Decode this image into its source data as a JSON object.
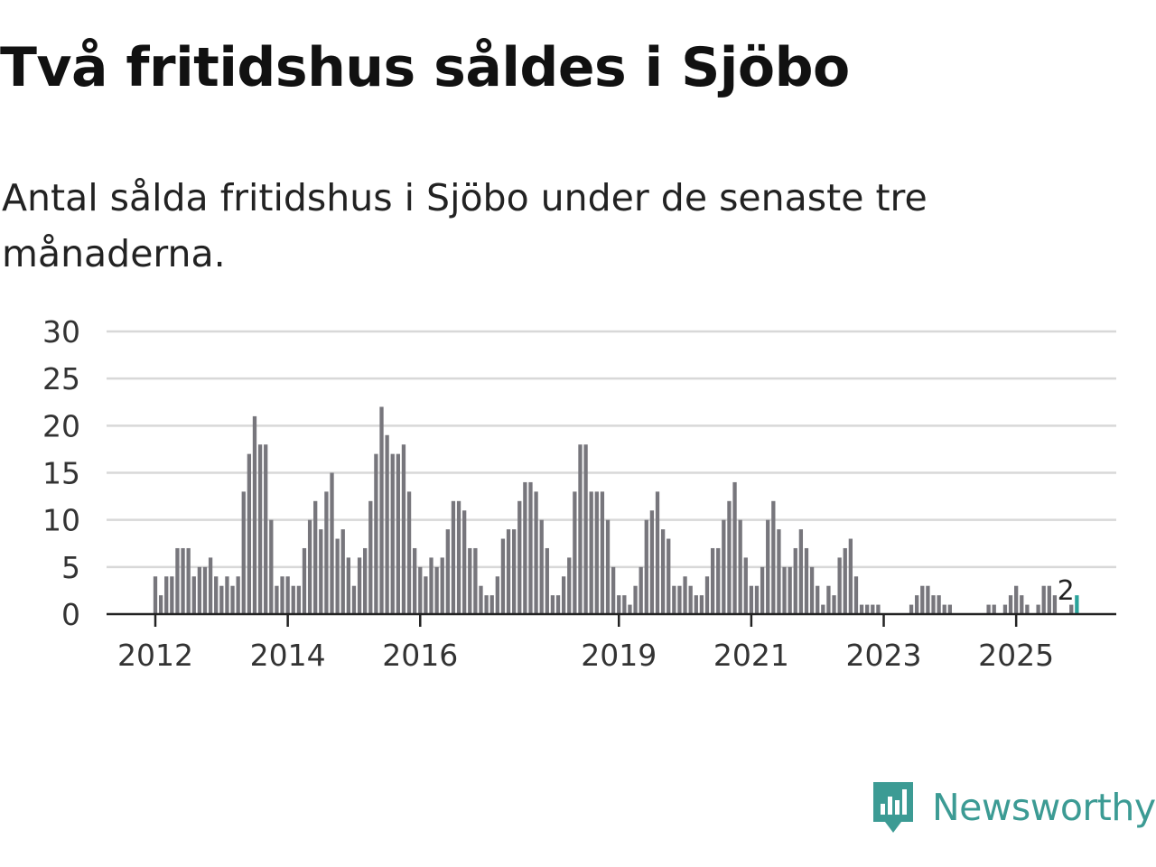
{
  "title": "Två fritidshus såldes i Sjöbo",
  "subtitle": "Antal sålda fritidshus i Sjöbo under de senaste tre månaderna.",
  "brand": {
    "name": "Newsworthy",
    "color": "#3c9b94"
  },
  "colors": {
    "bar": "#77767c",
    "highlight": "#2aa39b",
    "grid": "#d8d8d8",
    "axis": "#222222"
  },
  "chart_data": {
    "type": "bar",
    "title": "Två fritidshus såldes i Sjöbo",
    "subtitle": "Antal sålda fritidshus i Sjöbo under de senaste tre månaderna.",
    "xlabel": "",
    "ylabel": "",
    "ylim": [
      0,
      30
    ],
    "yticks": [
      0,
      5,
      10,
      15,
      20,
      25,
      30
    ],
    "x_ticks": [
      {
        "label": "2012",
        "index": 0
      },
      {
        "label": "2014",
        "index": 24
      },
      {
        "label": "2016",
        "index": 48
      },
      {
        "label": "2019",
        "index": 84
      },
      {
        "label": "2021",
        "index": 108
      },
      {
        "label": "2023",
        "index": 132
      },
      {
        "label": "2025",
        "index": 156
      }
    ],
    "start": "2012-01",
    "values": [
      4,
      2,
      4,
      4,
      7,
      7,
      7,
      4,
      5,
      5,
      6,
      4,
      3,
      4,
      3,
      4,
      13,
      17,
      21,
      18,
      18,
      10,
      3,
      4,
      4,
      3,
      3,
      7,
      10,
      12,
      9,
      13,
      15,
      8,
      9,
      6,
      3,
      6,
      7,
      12,
      17,
      22,
      19,
      17,
      17,
      18,
      13,
      7,
      5,
      4,
      6,
      5,
      6,
      9,
      12,
      12,
      11,
      7,
      7,
      3,
      2,
      2,
      4,
      8,
      9,
      9,
      12,
      14,
      14,
      13,
      10,
      7,
      2,
      2,
      4,
      6,
      13,
      18,
      18,
      13,
      13,
      13,
      10,
      5,
      2,
      2,
      1,
      3,
      5,
      10,
      11,
      13,
      9,
      8,
      3,
      3,
      4,
      3,
      2,
      2,
      4,
      7,
      7,
      10,
      12,
      14,
      10,
      6,
      3,
      3,
      5,
      10,
      12,
      9,
      5,
      5,
      7,
      9,
      7,
      5,
      3,
      1,
      3,
      2,
      6,
      7,
      8,
      4,
      1,
      1,
      1,
      1,
      0,
      0,
      0,
      0,
      0,
      1,
      2,
      3,
      3,
      2,
      2,
      1,
      1,
      0,
      0,
      0,
      0,
      0,
      0,
      1,
      1,
      0,
      1,
      2,
      3,
      2,
      1,
      0,
      1,
      3,
      3,
      2,
      0,
      0,
      1,
      2
    ],
    "highlight_last": 1,
    "annotation": {
      "label": "2",
      "index": 165
    }
  }
}
